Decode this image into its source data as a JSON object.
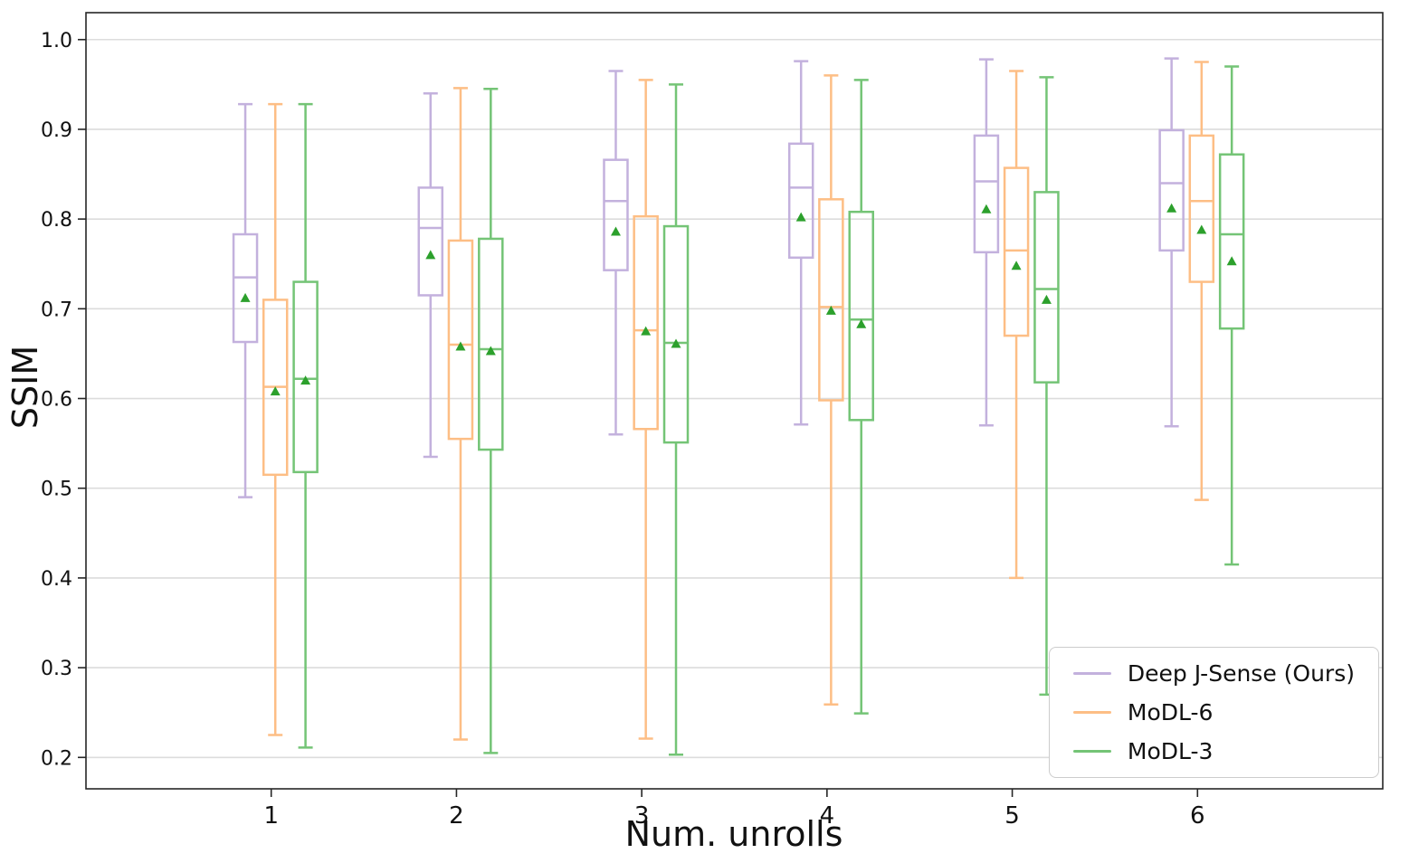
{
  "chart_data": {
    "type": "boxplot",
    "title": "",
    "xlabel": "Num. unrolls",
    "ylabel": "SSIM",
    "categories": [
      "1",
      "2",
      "3",
      "4",
      "5",
      "6"
    ],
    "x_positions": [
      1,
      2,
      3,
      4,
      5,
      6
    ],
    "xlim": [
      0,
      7
    ],
    "ylim": [
      0.165,
      1.03
    ],
    "yticks": [
      0.2,
      0.3,
      0.4,
      0.5,
      0.6,
      0.7,
      0.8,
      0.9,
      1.0
    ],
    "grid": "horizontal",
    "legend_position": "lower-right",
    "colors": {
      "grid": "#dcdcdc",
      "spine": "#262626",
      "tick_label": "#111111",
      "mean_marker": "#2ca02c"
    },
    "series": [
      {
        "name": "Deep J-Sense (Ours)",
        "color": "#c3b1dd",
        "offset": -0.14,
        "boxes": [
          {
            "whislo": 0.49,
            "q1": 0.663,
            "med": 0.735,
            "q3": 0.783,
            "whishi": 0.928,
            "mean": 0.712
          },
          {
            "whislo": 0.535,
            "q1": 0.715,
            "med": 0.79,
            "q3": 0.835,
            "whishi": 0.94,
            "mean": 0.76
          },
          {
            "whislo": 0.56,
            "q1": 0.743,
            "med": 0.82,
            "q3": 0.866,
            "whishi": 0.965,
            "mean": 0.786
          },
          {
            "whislo": 0.571,
            "q1": 0.757,
            "med": 0.835,
            "q3": 0.884,
            "whishi": 0.976,
            "mean": 0.802
          },
          {
            "whislo": 0.57,
            "q1": 0.763,
            "med": 0.842,
            "q3": 0.893,
            "whishi": 0.978,
            "mean": 0.811
          },
          {
            "whislo": 0.569,
            "q1": 0.765,
            "med": 0.84,
            "q3": 0.899,
            "whishi": 0.979,
            "mean": 0.812
          }
        ]
      },
      {
        "name": "MoDL-6",
        "color": "#fdbe85",
        "offset": 0.022,
        "boxes": [
          {
            "whislo": 0.225,
            "q1": 0.515,
            "med": 0.613,
            "q3": 0.71,
            "whishi": 0.928,
            "mean": 0.608
          },
          {
            "whislo": 0.22,
            "q1": 0.555,
            "med": 0.66,
            "q3": 0.776,
            "whishi": 0.946,
            "mean": 0.658
          },
          {
            "whislo": 0.221,
            "q1": 0.566,
            "med": 0.676,
            "q3": 0.803,
            "whishi": 0.955,
            "mean": 0.675
          },
          {
            "whislo": 0.259,
            "q1": 0.598,
            "med": 0.702,
            "q3": 0.822,
            "whishi": 0.96,
            "mean": 0.698
          },
          {
            "whislo": 0.4,
            "q1": 0.67,
            "med": 0.765,
            "q3": 0.857,
            "whishi": 0.965,
            "mean": 0.748
          },
          {
            "whislo": 0.487,
            "q1": 0.73,
            "med": 0.82,
            "q3": 0.893,
            "whishi": 0.975,
            "mean": 0.788
          }
        ]
      },
      {
        "name": "MoDL-3",
        "color": "#74c476",
        "offset": 0.185,
        "boxes": [
          {
            "whislo": 0.211,
            "q1": 0.518,
            "med": 0.622,
            "q3": 0.73,
            "whishi": 0.928,
            "mean": 0.62
          },
          {
            "whislo": 0.205,
            "q1": 0.543,
            "med": 0.655,
            "q3": 0.778,
            "whishi": 0.945,
            "mean": 0.653
          },
          {
            "whislo": 0.203,
            "q1": 0.551,
            "med": 0.662,
            "q3": 0.792,
            "whishi": 0.95,
            "mean": 0.661
          },
          {
            "whislo": 0.249,
            "q1": 0.576,
            "med": 0.688,
            "q3": 0.808,
            "whishi": 0.955,
            "mean": 0.683
          },
          {
            "whislo": 0.27,
            "q1": 0.618,
            "med": 0.722,
            "q3": 0.83,
            "whishi": 0.958,
            "mean": 0.71
          },
          {
            "whislo": 0.415,
            "q1": 0.678,
            "med": 0.783,
            "q3": 0.872,
            "whishi": 0.97,
            "mean": 0.753
          }
        ]
      }
    ]
  }
}
